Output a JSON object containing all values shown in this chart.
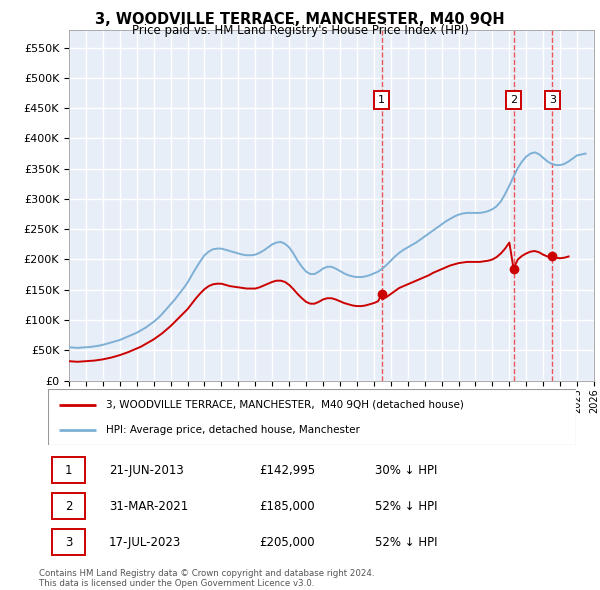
{
  "title": "3, WOODVILLE TERRACE, MANCHESTER, M40 9QH",
  "subtitle": "Price paid vs. HM Land Registry's House Price Index (HPI)",
  "ylabel_ticks": [
    "£0",
    "£50K",
    "£100K",
    "£150K",
    "£200K",
    "£250K",
    "£300K",
    "£350K",
    "£400K",
    "£450K",
    "£500K",
    "£550K"
  ],
  "ytick_values": [
    0,
    50000,
    100000,
    150000,
    200000,
    250000,
    300000,
    350000,
    400000,
    450000,
    500000,
    550000
  ],
  "xlim": [
    1995.0,
    2026.0
  ],
  "ylim": [
    0,
    580000
  ],
  "hpi_color": "#7eb0d5",
  "sale_color": "#cc0000",
  "vline_color": "#ee4444",
  "background_color": "#e8eef8",
  "grid_color": "#ffffff",
  "legend_label_red": "3, WOODVILLE TERRACE, MANCHESTER,  M40 9QH (detached house)",
  "legend_label_blue": "HPI: Average price, detached house, Manchester",
  "sales": [
    {
      "num": 1,
      "year": 2013.47,
      "price": 142995,
      "label": "1",
      "date": "21-JUN-2013",
      "price_str": "£142,995",
      "pct": "30% ↓ HPI"
    },
    {
      "num": 2,
      "year": 2021.25,
      "price": 185000,
      "label": "2",
      "date": "31-MAR-2021",
      "price_str": "£185,000",
      "pct": "52% ↓ HPI"
    },
    {
      "num": 3,
      "year": 2023.54,
      "price": 205000,
      "label": "3",
      "date": "17-JUL-2023",
      "price_str": "£205,000",
      "pct": "52% ↓ HPI"
    }
  ],
  "hpi_data": [
    [
      1995.0,
      55000
    ],
    [
      1995.25,
      54500
    ],
    [
      1995.5,
      54000
    ],
    [
      1995.75,
      54500
    ],
    [
      1996.0,
      55000
    ],
    [
      1996.25,
      55500
    ],
    [
      1996.5,
      56500
    ],
    [
      1996.75,
      57500
    ],
    [
      1997.0,
      59000
    ],
    [
      1997.25,
      61000
    ],
    [
      1997.5,
      63000
    ],
    [
      1997.75,
      65000
    ],
    [
      1998.0,
      67000
    ],
    [
      1998.25,
      70000
    ],
    [
      1998.5,
      73000
    ],
    [
      1998.75,
      76000
    ],
    [
      1999.0,
      79000
    ],
    [
      1999.25,
      83000
    ],
    [
      1999.5,
      87000
    ],
    [
      1999.75,
      92000
    ],
    [
      2000.0,
      97000
    ],
    [
      2000.25,
      103000
    ],
    [
      2000.5,
      110000
    ],
    [
      2000.75,
      118000
    ],
    [
      2001.0,
      126000
    ],
    [
      2001.25,
      134000
    ],
    [
      2001.5,
      143000
    ],
    [
      2001.75,
      152000
    ],
    [
      2002.0,
      162000
    ],
    [
      2002.25,
      174000
    ],
    [
      2002.5,
      186000
    ],
    [
      2002.75,
      197000
    ],
    [
      2003.0,
      207000
    ],
    [
      2003.25,
      213000
    ],
    [
      2003.5,
      217000
    ],
    [
      2003.75,
      218000
    ],
    [
      2004.0,
      218000
    ],
    [
      2004.25,
      216000
    ],
    [
      2004.5,
      214000
    ],
    [
      2004.75,
      212000
    ],
    [
      2005.0,
      210000
    ],
    [
      2005.25,
      208000
    ],
    [
      2005.5,
      207000
    ],
    [
      2005.75,
      207000
    ],
    [
      2006.0,
      208000
    ],
    [
      2006.25,
      211000
    ],
    [
      2006.5,
      215000
    ],
    [
      2006.75,
      220000
    ],
    [
      2007.0,
      225000
    ],
    [
      2007.25,
      228000
    ],
    [
      2007.5,
      229000
    ],
    [
      2007.75,
      226000
    ],
    [
      2008.0,
      220000
    ],
    [
      2008.25,
      210000
    ],
    [
      2008.5,
      198000
    ],
    [
      2008.75,
      188000
    ],
    [
      2009.0,
      180000
    ],
    [
      2009.25,
      176000
    ],
    [
      2009.5,
      176000
    ],
    [
      2009.75,
      180000
    ],
    [
      2010.0,
      185000
    ],
    [
      2010.25,
      188000
    ],
    [
      2010.5,
      188000
    ],
    [
      2010.75,
      185000
    ],
    [
      2011.0,
      181000
    ],
    [
      2011.25,
      177000
    ],
    [
      2011.5,
      174000
    ],
    [
      2011.75,
      172000
    ],
    [
      2012.0,
      171000
    ],
    [
      2012.25,
      171000
    ],
    [
      2012.5,
      172000
    ],
    [
      2012.75,
      174000
    ],
    [
      2013.0,
      177000
    ],
    [
      2013.25,
      180000
    ],
    [
      2013.5,
      185000
    ],
    [
      2013.75,
      191000
    ],
    [
      2014.0,
      198000
    ],
    [
      2014.25,
      205000
    ],
    [
      2014.5,
      211000
    ],
    [
      2014.75,
      216000
    ],
    [
      2015.0,
      220000
    ],
    [
      2015.25,
      224000
    ],
    [
      2015.5,
      228000
    ],
    [
      2015.75,
      233000
    ],
    [
      2016.0,
      238000
    ],
    [
      2016.25,
      243000
    ],
    [
      2016.5,
      248000
    ],
    [
      2016.75,
      253000
    ],
    [
      2017.0,
      258000
    ],
    [
      2017.25,
      263000
    ],
    [
      2017.5,
      267000
    ],
    [
      2017.75,
      271000
    ],
    [
      2018.0,
      274000
    ],
    [
      2018.25,
      276000
    ],
    [
      2018.5,
      277000
    ],
    [
      2018.75,
      277000
    ],
    [
      2019.0,
      277000
    ],
    [
      2019.25,
      277000
    ],
    [
      2019.5,
      278000
    ],
    [
      2019.75,
      280000
    ],
    [
      2020.0,
      283000
    ],
    [
      2020.25,
      288000
    ],
    [
      2020.5,
      296000
    ],
    [
      2020.75,
      308000
    ],
    [
      2021.0,
      322000
    ],
    [
      2021.25,
      337000
    ],
    [
      2021.5,
      351000
    ],
    [
      2021.75,
      362000
    ],
    [
      2022.0,
      370000
    ],
    [
      2022.25,
      375000
    ],
    [
      2022.5,
      377000
    ],
    [
      2022.75,
      374000
    ],
    [
      2023.0,
      368000
    ],
    [
      2023.25,
      362000
    ],
    [
      2023.5,
      358000
    ],
    [
      2023.75,
      356000
    ],
    [
      2024.0,
      356000
    ],
    [
      2024.25,
      358000
    ],
    [
      2024.5,
      362000
    ],
    [
      2024.75,
      367000
    ],
    [
      2025.0,
      372000
    ],
    [
      2025.5,
      375000
    ]
  ],
  "sale_red_data": [
    [
      1995.0,
      32000
    ],
    [
      1995.25,
      31500
    ],
    [
      1995.5,
      31000
    ],
    [
      1995.75,
      31500
    ],
    [
      1996.0,
      32000
    ],
    [
      1996.25,
      32500
    ],
    [
      1996.5,
      33000
    ],
    [
      1996.75,
      34000
    ],
    [
      1997.0,
      35000
    ],
    [
      1997.25,
      36500
    ],
    [
      1997.5,
      38000
    ],
    [
      1997.75,
      40000
    ],
    [
      1998.0,
      42000
    ],
    [
      1998.25,
      44500
    ],
    [
      1998.5,
      47000
    ],
    [
      1998.75,
      50000
    ],
    [
      1999.0,
      53000
    ],
    [
      1999.25,
      56000
    ],
    [
      1999.5,
      60000
    ],
    [
      1999.75,
      64000
    ],
    [
      2000.0,
      68000
    ],
    [
      2000.25,
      73000
    ],
    [
      2000.5,
      78000
    ],
    [
      2000.75,
      84000
    ],
    [
      2001.0,
      90000
    ],
    [
      2001.25,
      97000
    ],
    [
      2001.5,
      104000
    ],
    [
      2001.75,
      111000
    ],
    [
      2002.0,
      118000
    ],
    [
      2002.25,
      127000
    ],
    [
      2002.5,
      136000
    ],
    [
      2002.75,
      144000
    ],
    [
      2003.0,
      151000
    ],
    [
      2003.25,
      156000
    ],
    [
      2003.5,
      159000
    ],
    [
      2003.75,
      160000
    ],
    [
      2004.0,
      160000
    ],
    [
      2004.25,
      158000
    ],
    [
      2004.5,
      156000
    ],
    [
      2004.75,
      155000
    ],
    [
      2005.0,
      154000
    ],
    [
      2005.25,
      153000
    ],
    [
      2005.5,
      152000
    ],
    [
      2005.75,
      152000
    ],
    [
      2006.0,
      152000
    ],
    [
      2006.25,
      154000
    ],
    [
      2006.5,
      157000
    ],
    [
      2006.75,
      160000
    ],
    [
      2007.0,
      163000
    ],
    [
      2007.25,
      165000
    ],
    [
      2007.5,
      165000
    ],
    [
      2007.75,
      163000
    ],
    [
      2008.0,
      158000
    ],
    [
      2008.25,
      151000
    ],
    [
      2008.5,
      143000
    ],
    [
      2008.75,
      136000
    ],
    [
      2009.0,
      130000
    ],
    [
      2009.25,
      127000
    ],
    [
      2009.5,
      127000
    ],
    [
      2009.75,
      130000
    ],
    [
      2010.0,
      134000
    ],
    [
      2010.25,
      136000
    ],
    [
      2010.5,
      136000
    ],
    [
      2010.75,
      134000
    ],
    [
      2011.0,
      131000
    ],
    [
      2011.25,
      128000
    ],
    [
      2011.5,
      126000
    ],
    [
      2011.75,
      124000
    ],
    [
      2012.0,
      123000
    ],
    [
      2012.25,
      123000
    ],
    [
      2012.5,
      124000
    ],
    [
      2012.75,
      126000
    ],
    [
      2013.0,
      128000
    ],
    [
      2013.25,
      131000
    ],
    [
      2013.47,
      142995
    ],
    [
      2013.5,
      134000
    ],
    [
      2013.75,
      138000
    ],
    [
      2014.0,
      143000
    ],
    [
      2014.25,
      148000
    ],
    [
      2014.5,
      153000
    ],
    [
      2014.75,
      156000
    ],
    [
      2015.0,
      159000
    ],
    [
      2015.25,
      162000
    ],
    [
      2015.5,
      165000
    ],
    [
      2015.75,
      168000
    ],
    [
      2016.0,
      171000
    ],
    [
      2016.25,
      174000
    ],
    [
      2016.5,
      178000
    ],
    [
      2016.75,
      181000
    ],
    [
      2017.0,
      184000
    ],
    [
      2017.25,
      187000
    ],
    [
      2017.5,
      190000
    ],
    [
      2017.75,
      192000
    ],
    [
      2018.0,
      194000
    ],
    [
      2018.25,
      195000
    ],
    [
      2018.5,
      196000
    ],
    [
      2018.75,
      196000
    ],
    [
      2019.0,
      196000
    ],
    [
      2019.25,
      196000
    ],
    [
      2019.5,
      197000
    ],
    [
      2019.75,
      198000
    ],
    [
      2020.0,
      200000
    ],
    [
      2020.25,
      204000
    ],
    [
      2020.5,
      210000
    ],
    [
      2020.75,
      218000
    ],
    [
      2021.0,
      228000
    ],
    [
      2021.25,
      185000
    ],
    [
      2021.5,
      200000
    ],
    [
      2021.75,
      206000
    ],
    [
      2022.0,
      210000
    ],
    [
      2022.25,
      213000
    ],
    [
      2022.5,
      214000
    ],
    [
      2022.75,
      212000
    ],
    [
      2023.0,
      208000
    ],
    [
      2023.25,
      205000
    ],
    [
      2023.54,
      205000
    ],
    [
      2023.75,
      203000
    ],
    [
      2024.0,
      202000
    ],
    [
      2024.25,
      203000
    ],
    [
      2024.5,
      205000
    ]
  ],
  "footnote": "Contains HM Land Registry data © Crown copyright and database right 2024.\nThis data is licensed under the Open Government Licence v3.0."
}
